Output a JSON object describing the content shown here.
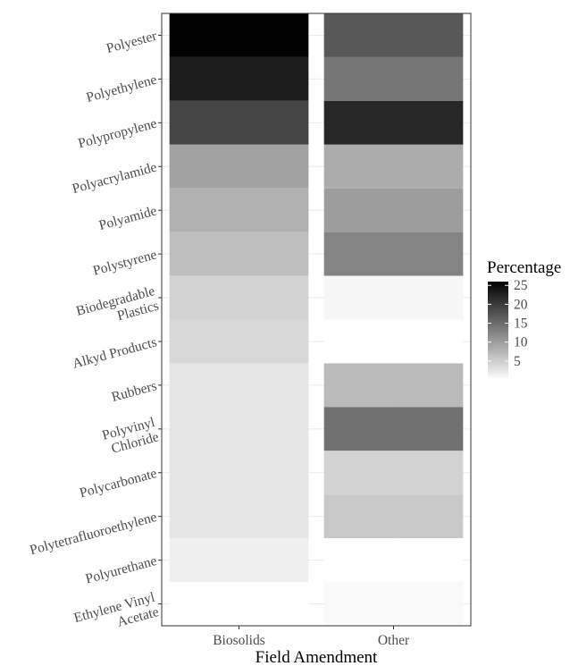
{
  "chart_data": {
    "type": "heatmap",
    "xlabel": "Field Amendment",
    "x_categories": [
      "Biosolids",
      "Other"
    ],
    "y_categories": [
      [
        "Polyester"
      ],
      [
        "Polyethylene"
      ],
      [
        "Polypropylene"
      ],
      [
        "Polyacrylamide"
      ],
      [
        "Polyamide"
      ],
      [
        "Polystyrene"
      ],
      [
        "Biodegradable",
        "Plastics"
      ],
      [
        "Alkyd Products"
      ],
      [
        "Rubbers"
      ],
      [
        "Polyvinyl",
        "Chloride"
      ],
      [
        "Polycarbonate"
      ],
      [
        "Polytetrafluoroethylene"
      ],
      [
        "Polyurethane"
      ],
      [
        "Ethylene Vinyl",
        "Acetate"
      ]
    ],
    "values": [
      [
        26,
        17
      ],
      [
        23,
        14
      ],
      [
        19,
        22
      ],
      [
        9.5,
        8.5
      ],
      [
        8.0,
        10.0
      ],
      [
        6.5,
        12.5
      ],
      [
        4.5,
        0.8
      ],
      [
        4.0,
        0.0
      ],
      [
        2.6,
        7.0
      ],
      [
        2.6,
        14.5
      ],
      [
        2.6,
        4.5
      ],
      [
        2.6,
        5.5
      ],
      [
        1.5,
        0.0
      ],
      [
        0.0,
        0.5
      ]
    ],
    "legend": {
      "title": "Percentage",
      "ticks": [
        5,
        10,
        15,
        20,
        25
      ],
      "range": [
        0,
        26
      ],
      "placement": "right",
      "low_color": "#ffffff",
      "high_color": "#000000"
    },
    "grid": true,
    "panel_background": "#ffffff",
    "gridline_color": "#ebebeb"
  }
}
